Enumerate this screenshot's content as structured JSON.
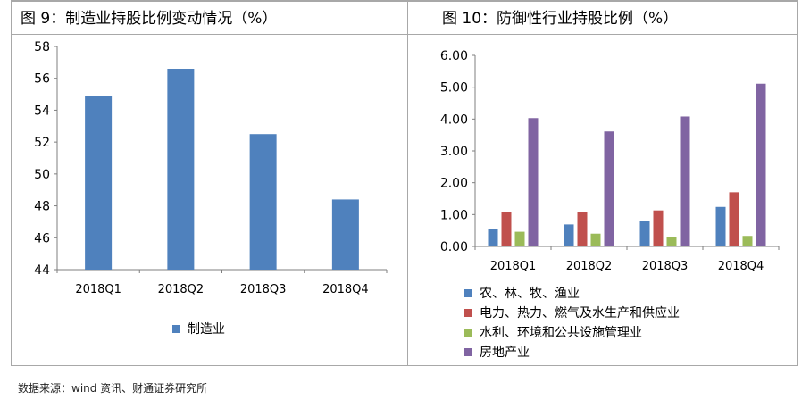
{
  "left_panel": {
    "title": "图 9：制造业持股比例变动情况（%）"
  },
  "right_panel": {
    "title": "图 10：防御性行业持股比例（%）"
  },
  "source": "数据来源：wind 资讯、财通证券研究所",
  "chart_data": [
    {
      "type": "bar",
      "title": "图 9：制造业持股比例变动情况（%）",
      "categories": [
        "2018Q1",
        "2018Q2",
        "2018Q3",
        "2018Q4"
      ],
      "series": [
        {
          "name": "制造业",
          "values": [
            54.9,
            56.6,
            52.5,
            48.4
          ],
          "color": "#4f81bd"
        }
      ],
      "y_ticks": [
        "44",
        "46",
        "48",
        "50",
        "52",
        "54",
        "56",
        "58"
      ],
      "ylim": [
        44,
        58
      ],
      "grid": false,
      "legend": "bottom"
    },
    {
      "type": "bar",
      "title": "图 10：防御性行业持股比例（%）",
      "categories": [
        "2018Q1",
        "2018Q2",
        "2018Q3",
        "2018Q4"
      ],
      "series": [
        {
          "name": "农、林、牧、渔业",
          "values": [
            0.55,
            0.69,
            0.81,
            1.24
          ],
          "color": "#4f81bd"
        },
        {
          "name": "电力、热力、燃气及水生产和供应业",
          "values": [
            1.08,
            1.07,
            1.13,
            1.7
          ],
          "color": "#c0504d"
        },
        {
          "name": "水利、环境和公共设施管理业",
          "values": [
            0.46,
            0.4,
            0.29,
            0.33
          ],
          "color": "#9bbb59"
        },
        {
          "name": "房地产业",
          "values": [
            4.03,
            3.61,
            4.08,
            5.11
          ],
          "color": "#8064a2"
        }
      ],
      "y_ticks": [
        "0.00",
        "1.00",
        "2.00",
        "3.00",
        "4.00",
        "5.00",
        "6.00"
      ],
      "ylim": [
        0,
        6
      ],
      "grid": false,
      "legend": "bottom"
    }
  ]
}
